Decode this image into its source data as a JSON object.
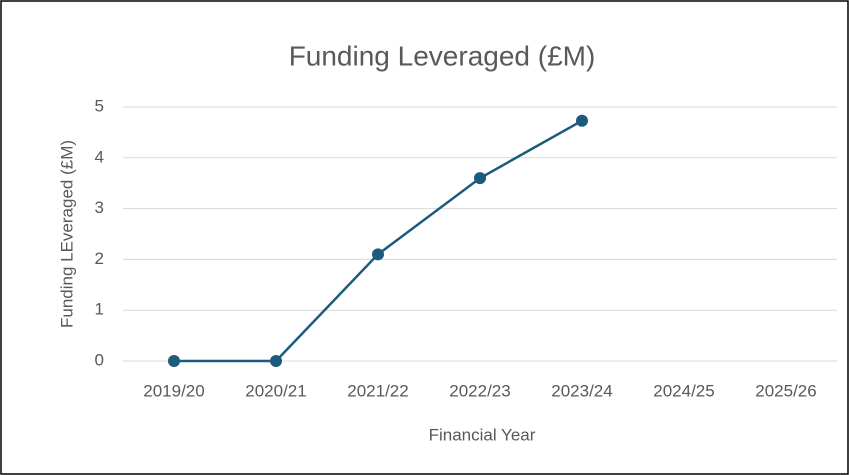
{
  "chart_data": {
    "type": "line",
    "title": "Funding Leveraged (£M)",
    "xlabel": "Financial Year",
    "ylabel": "Funding LEveraged (£M)",
    "categories": [
      "2019/20",
      "2020/21",
      "2021/22",
      "2022/23",
      "2023/24",
      "2024/25",
      "2025/26"
    ],
    "series": [
      {
        "name": "Funding Leveraged (£M)",
        "color": "#1b5b7e",
        "values": [
          0,
          0,
          2.1,
          3.6,
          4.73,
          null,
          null
        ]
      }
    ],
    "ylim": [
      0,
      5
    ],
    "yticks": [
      0,
      1,
      2,
      3,
      4,
      5
    ],
    "grid": true
  }
}
